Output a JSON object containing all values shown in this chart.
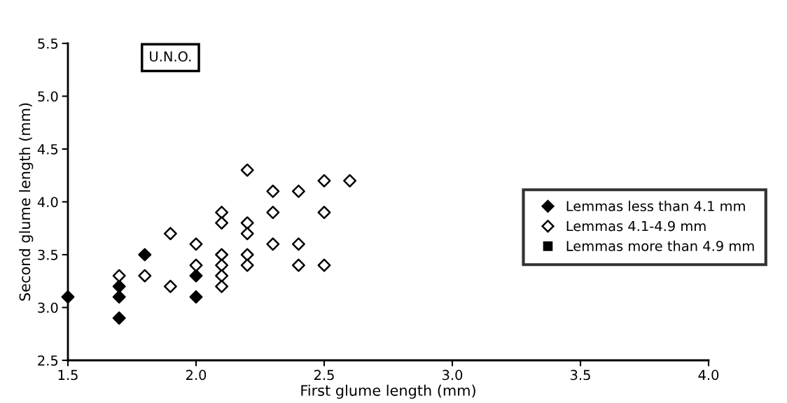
{
  "chart_data": {
    "type": "scatter",
    "xlabel": "First glume length (mm)",
    "ylabel": "Second glume length (mm)",
    "annotations": [
      "U.N.O."
    ],
    "xlim": [
      1.5,
      4.0
    ],
    "xticks": [
      {
        "value": 1.5,
        "label": "1.5"
      },
      {
        "value": 2,
        "label": "2.0"
      },
      {
        "value": 2.5,
        "label": "2.5"
      },
      {
        "value": 3,
        "label": "3.0"
      },
      {
        "value": 3.5,
        "label": "3.5"
      },
      {
        "value": 4,
        "label": "4.0"
      }
    ],
    "ylim": [
      2.5,
      5.5
    ],
    "yticks": [
      {
        "value": 2.5,
        "label": "2.5"
      },
      {
        "value": 3,
        "label": "3.0"
      },
      {
        "value": 3.5,
        "label": "3.5"
      },
      {
        "value": 4,
        "label": "4.0"
      },
      {
        "value": 4.5,
        "label": "4.5"
      },
      {
        "value": 5,
        "label": "5.0"
      },
      {
        "value": 5.5,
        "label": "5.5"
      }
    ],
    "grid": false,
    "legend": "right",
    "marker": "diamond",
    "series": [
      {
        "name": "Lemmas less than 4.1 mm",
        "color": "#000000",
        "x": [
          1.5,
          1.7,
          1.7,
          1.7,
          1.8,
          2.0,
          2.0
        ],
        "values": [
          3.1,
          3.2,
          3.1,
          2.9,
          3.5,
          3.3,
          3.1
        ]
      },
      {
        "name": "Lemmas 4.1-4.9 mm",
        "color": "#ffffff",
        "x": [
          1.7,
          1.8,
          1.9,
          1.9,
          2.0,
          2.0,
          2.1,
          2.1,
          2.1,
          2.1,
          2.1,
          2.1,
          2.2,
          2.2,
          2.2,
          2.2,
          2.2,
          2.3,
          2.3,
          2.3,
          2.4,
          2.4,
          2.4,
          2.5,
          2.5,
          2.5,
          2.6
        ],
        "values": [
          3.3,
          3.3,
          3.7,
          3.2,
          3.6,
          3.4,
          3.9,
          3.8,
          3.5,
          3.4,
          3.3,
          3.2,
          4.3,
          3.8,
          3.7,
          3.5,
          3.4,
          4.1,
          3.9,
          3.6,
          4.1,
          3.6,
          3.4,
          4.2,
          3.9,
          3.4,
          4.2
        ]
      },
      {
        "name": "Lemmas more than 4.9 mm",
        "color": "#000000",
        "marker": "square"
      }
    ]
  }
}
